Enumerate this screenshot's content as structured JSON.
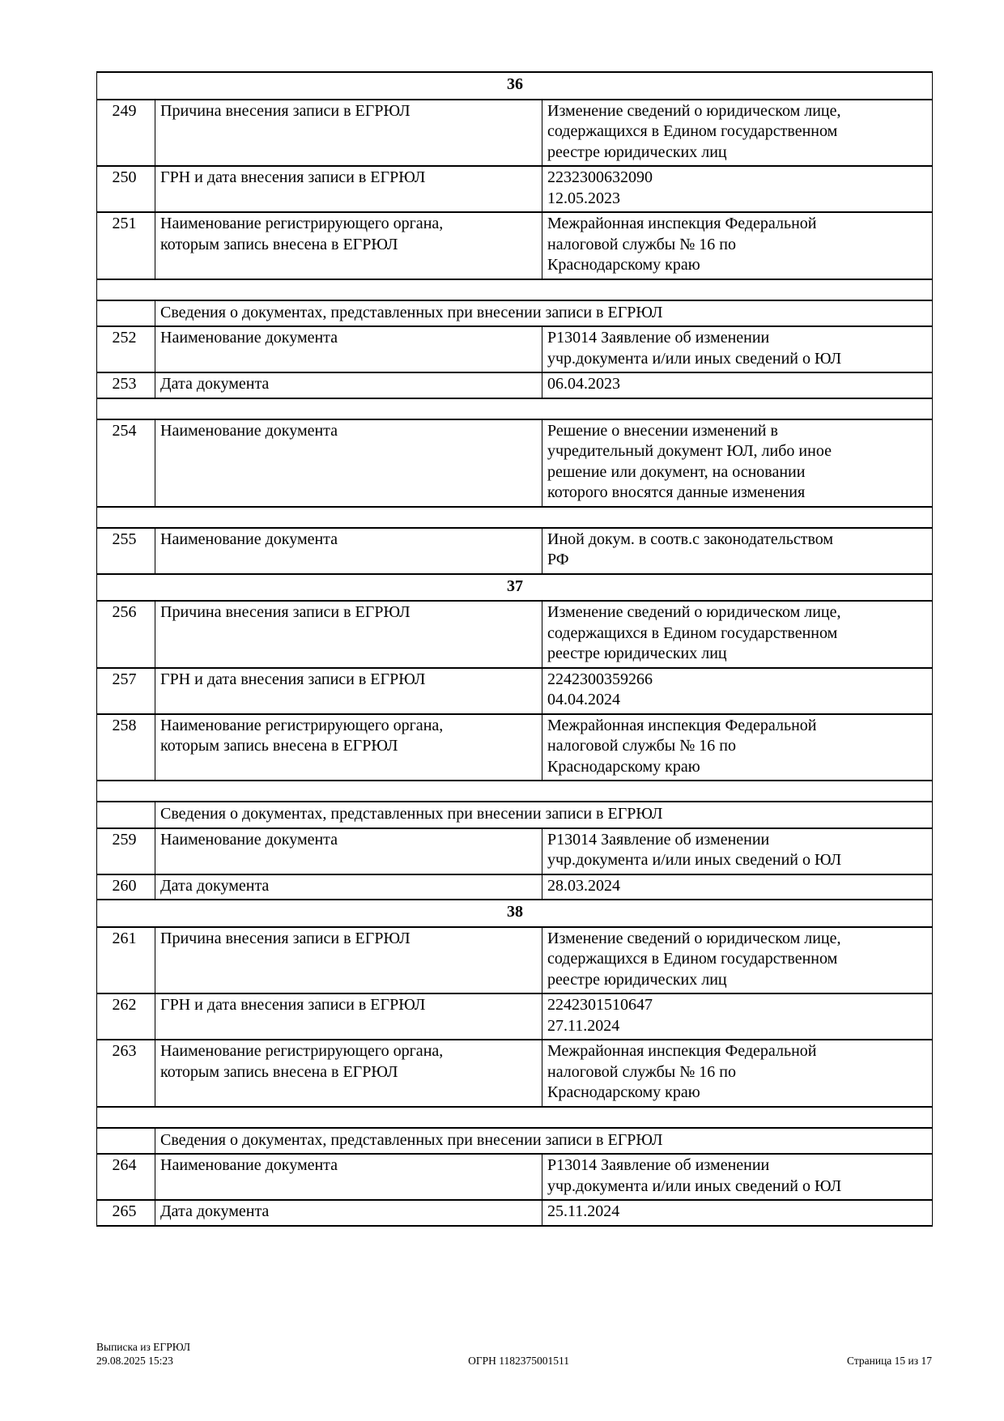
{
  "colors": {
    "text": "#000000",
    "background": "#ffffff",
    "table_border": "#000000"
  },
  "table": {
    "rows": [
      {
        "type": "section",
        "text": "36"
      },
      {
        "type": "data",
        "num": "249",
        "label": "Причина внесения записи в ЕГРЮЛ",
        "value": "Изменение сведений о юридическом лице,\nсодержащихся в Едином государственном\nреестре юридических лиц"
      },
      {
        "type": "data",
        "num": "250",
        "label": "ГРН и дата внесения записи в ЕГРЮЛ",
        "value": "2232300632090\n12.05.2023"
      },
      {
        "type": "data",
        "num": "251",
        "label": "Наименование регистрирующего органа,\nкоторым запись внесена в ЕГРЮЛ",
        "value": "Межрайонная инспекция Федеральной\nналоговой службы № 16 по\nКраснодарскому краю"
      },
      {
        "type": "spacer"
      },
      {
        "type": "subheader",
        "text": "Сведения о документах, представленных при внесении записи в ЕГРЮЛ"
      },
      {
        "type": "data",
        "num": "252",
        "label": "Наименование документа",
        "value": "Р13014 Заявление об изменении\nучр.документа и/или иных сведений о ЮЛ"
      },
      {
        "type": "data",
        "num": "253",
        "label": "Дата документа",
        "value": "06.04.2023"
      },
      {
        "type": "spacer"
      },
      {
        "type": "data",
        "num": "254",
        "label": "Наименование документа",
        "value": "Решение о внесении изменений в\nучредительный документ ЮЛ, либо иное\nрешение или документ, на основании\nкоторого вносятся данные изменения"
      },
      {
        "type": "spacer"
      },
      {
        "type": "data",
        "num": "255",
        "label": "Наименование документа",
        "value": "Иной докум. в соотв.с законодательством\nРФ"
      },
      {
        "type": "section",
        "text": "37"
      },
      {
        "type": "data",
        "num": "256",
        "label": "Причина внесения записи в ЕГРЮЛ",
        "value": "Изменение сведений о юридическом лице,\nсодержащихся в Едином государственном\nреестре юридических лиц"
      },
      {
        "type": "data",
        "num": "257",
        "label": "ГРН и дата внесения записи в ЕГРЮЛ",
        "value": "2242300359266\n04.04.2024"
      },
      {
        "type": "data",
        "num": "258",
        "label": "Наименование регистрирующего органа,\nкоторым запись внесена в ЕГРЮЛ",
        "value": "Межрайонная инспекция Федеральной\nналоговой службы № 16 по\nКраснодарскому краю"
      },
      {
        "type": "spacer"
      },
      {
        "type": "subheader",
        "text": "Сведения о документах, представленных при внесении записи в ЕГРЮЛ"
      },
      {
        "type": "data",
        "num": "259",
        "label": "Наименование документа",
        "value": "Р13014 Заявление об изменении\nучр.документа и/или иных сведений о ЮЛ"
      },
      {
        "type": "data",
        "num": "260",
        "label": "Дата документа",
        "value": "28.03.2024"
      },
      {
        "type": "section",
        "text": "38"
      },
      {
        "type": "data",
        "num": "261",
        "label": "Причина внесения записи в ЕГРЮЛ",
        "value": "Изменение сведений о юридическом лице,\nсодержащихся в Едином государственном\nреестре юридических лиц"
      },
      {
        "type": "data",
        "num": "262",
        "label": "ГРН и дата внесения записи в ЕГРЮЛ",
        "value": "2242301510647\n27.11.2024"
      },
      {
        "type": "data",
        "num": "263",
        "label": "Наименование регистрирующего органа,\nкоторым запись внесена в ЕГРЮЛ",
        "value": "Межрайонная инспекция Федеральной\nналоговой службы № 16 по\nКраснодарскому краю"
      },
      {
        "type": "spacer"
      },
      {
        "type": "subheader",
        "text": "Сведения о документах, представленных при внесении записи в ЕГРЮЛ"
      },
      {
        "type": "data",
        "num": "264",
        "label": "Наименование документа",
        "value": "Р13014 Заявление об изменении\nучр.документа и/или иных сведений о ЮЛ"
      },
      {
        "type": "data",
        "num": "265",
        "label": "Дата документа",
        "value": "25.11.2024"
      }
    ]
  },
  "footer": {
    "doc_title": "Выписка из ЕГРЮЛ",
    "generated_at": "29.08.2025 15:23",
    "ogrn": "ОГРН 1182375001511",
    "page_info": "Страница 15 из 17"
  }
}
